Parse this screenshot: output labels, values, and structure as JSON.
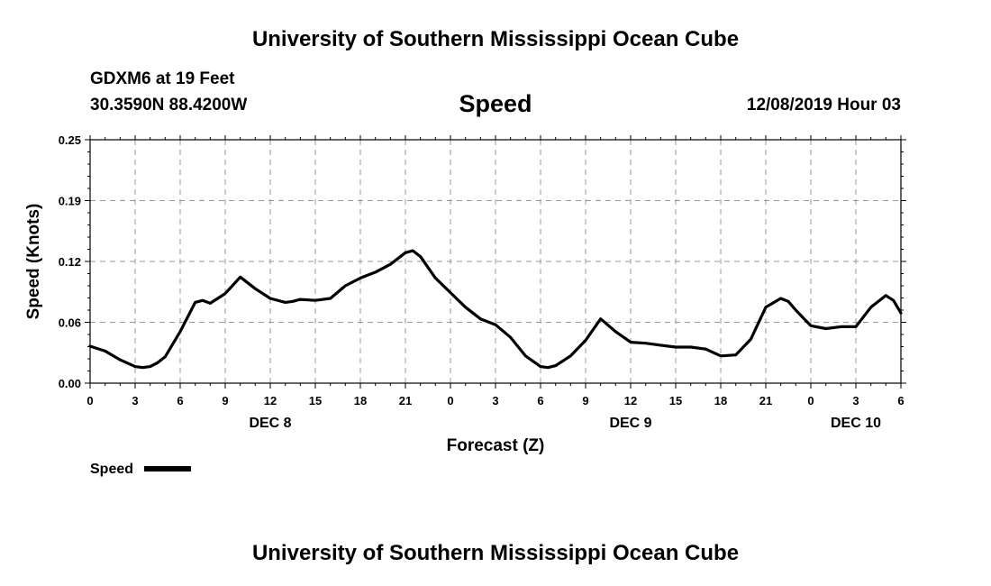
{
  "header": {
    "title_top": "University of Southern Mississippi Ocean Cube",
    "station": "GDXM6 at 19 Feet",
    "coords": "30.3590N 88.4200W",
    "datetime": "12/08/2019 Hour 03",
    "title_bottom": "University of Southern Mississippi Ocean Cube"
  },
  "colors": {
    "series": "#000000",
    "grid": "#999999",
    "axis": "#000000"
  },
  "chart_data": {
    "type": "line",
    "title": "Speed",
    "xlabel": "Forecast (Z)",
    "ylabel": "Speed (Knots)",
    "ylim": [
      0,
      0.25
    ],
    "xlim": [
      0,
      54
    ],
    "y_ticks": [
      "0.00",
      "0.06",
      "0.12",
      "0.19",
      "0.25"
    ],
    "x_ticks": [
      "0",
      "3",
      "6",
      "9",
      "12",
      "15",
      "18",
      "21",
      "0",
      "3",
      "6",
      "9",
      "12",
      "15",
      "18",
      "21",
      "0",
      "3",
      "6"
    ],
    "day_labels": [
      {
        "label": "DEC 8",
        "hour": 12
      },
      {
        "label": "DEC 9",
        "hour": 36
      },
      {
        "label": "DEC 10",
        "hour": 51
      }
    ],
    "grid": true,
    "legend": {
      "label": "Speed",
      "position": "bottom-left"
    },
    "series": [
      {
        "name": "Speed",
        "x": [
          0,
          1,
          2,
          3,
          3.5,
          4,
          4.5,
          5,
          6,
          7,
          7.5,
          8,
          9,
          10,
          11,
          12,
          13,
          13.5,
          14,
          15,
          16,
          17,
          18,
          19,
          20,
          21,
          21.5,
          22,
          23,
          24,
          25,
          26,
          27,
          28,
          29,
          30,
          30.5,
          31,
          32,
          33,
          34,
          35,
          36,
          37,
          38,
          39,
          40,
          41,
          42,
          43,
          44,
          45,
          46,
          46.5,
          47,
          48,
          49,
          50,
          51,
          52,
          53,
          53.5,
          54
        ],
        "y": [
          0.038,
          0.033,
          0.024,
          0.017,
          0.016,
          0.017,
          0.021,
          0.027,
          0.053,
          0.083,
          0.085,
          0.082,
          0.092,
          0.109,
          0.097,
          0.087,
          0.083,
          0.084,
          0.086,
          0.085,
          0.087,
          0.1,
          0.108,
          0.114,
          0.122,
          0.134,
          0.136,
          0.13,
          0.108,
          0.093,
          0.078,
          0.066,
          0.06,
          0.047,
          0.028,
          0.017,
          0.016,
          0.018,
          0.028,
          0.044,
          0.066,
          0.053,
          0.042,
          0.041,
          0.039,
          0.037,
          0.037,
          0.035,
          0.028,
          0.029,
          0.045,
          0.078,
          0.087,
          0.084,
          0.075,
          0.059,
          0.056,
          0.058,
          0.058,
          0.078,
          0.09,
          0.085,
          0.072
        ]
      }
    ]
  }
}
